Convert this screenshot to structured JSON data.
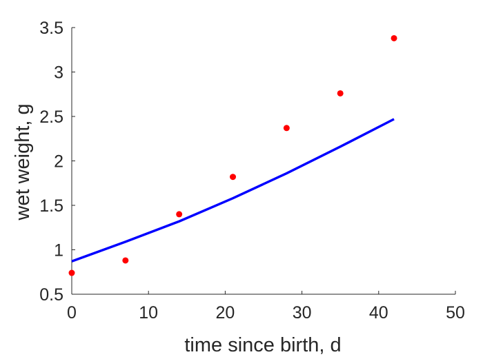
{
  "chart_data": {
    "type": "scatter",
    "xlabel": "time since birth, d",
    "ylabel": "wet weight, g",
    "xlim": [
      0,
      50
    ],
    "ylim": [
      0.5,
      3.5
    ],
    "xticks": [
      0,
      10,
      20,
      30,
      40,
      50
    ],
    "yticks": [
      0.5,
      1,
      1.5,
      2,
      2.5,
      3,
      3.5
    ],
    "xtick_labels": [
      "0",
      "10",
      "20",
      "30",
      "40",
      "50"
    ],
    "ytick_labels": [
      "0.5",
      "1",
      "1.5",
      "2",
      "2.5",
      "3",
      "3.5"
    ],
    "grid": false,
    "series": [
      {
        "kind": "points",
        "color": "#ff0000",
        "x": [
          0,
          7,
          14,
          21,
          28,
          35,
          42
        ],
        "y": [
          0.74,
          0.88,
          1.4,
          1.82,
          2.37,
          2.76,
          3.38
        ]
      },
      {
        "kind": "line",
        "color": "#0000ff",
        "x": [
          0,
          7,
          14,
          21,
          28,
          35,
          42
        ],
        "y": [
          0.87,
          1.09,
          1.32,
          1.58,
          1.86,
          2.16,
          2.47
        ]
      }
    ]
  }
}
